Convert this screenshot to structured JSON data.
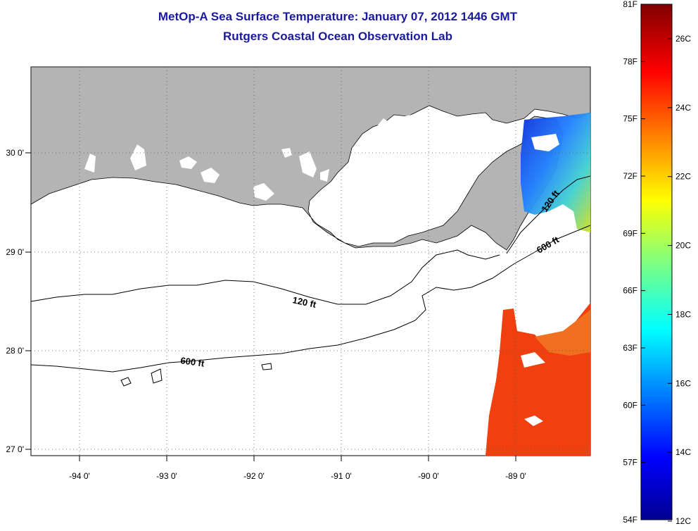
{
  "title": "MetOp-A Sea Surface Temperature:  January 07, 2012 1446 GMT",
  "subtitle": "Rutgers Coastal Ocean Observation Lab",
  "map": {
    "lon_labels": [
      "-94 0'",
      "-93 0'",
      "-92 0'",
      "-91 0'",
      "-90 0'",
      "-89 0'"
    ],
    "lat_labels": [
      "30 0'",
      "29 0'",
      "28 0'",
      "27 0'"
    ],
    "contour_labels": [
      "120 ft",
      "600 ft",
      "120 ft",
      "600 ft"
    ]
  },
  "colorbar": {
    "f_labels": [
      "81F",
      "78F",
      "75F",
      "72F",
      "69F",
      "66F",
      "63F",
      "60F",
      "57F",
      "54F"
    ],
    "c_labels": [
      "26C",
      "24C",
      "22C",
      "20C",
      "18C",
      "16C",
      "14C",
      "12C"
    ]
  },
  "colors": {
    "land": "#b4b4b4",
    "title": "#1a1aa0"
  }
}
